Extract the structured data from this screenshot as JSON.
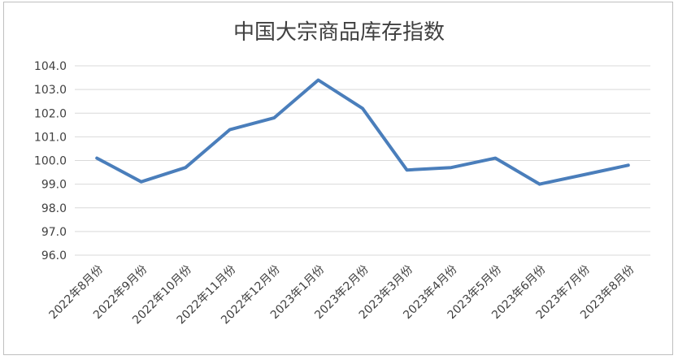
{
  "chart_data": {
    "type": "line",
    "title": "中国大宗商品库存指数",
    "xlabel": "",
    "ylabel": "",
    "ylim": [
      96.0,
      104.0
    ],
    "yticks": [
      "104.0",
      "103.0",
      "102.0",
      "101.0",
      "100.0",
      "99.0",
      "98.0",
      "97.0",
      "96.0"
    ],
    "grid": true,
    "legend": "none",
    "categories": [
      "2022年8月份",
      "2022年9月份",
      "2022年10月份",
      "2022年11月份",
      "2022年12月份",
      "2023年1月份",
      "2023年2月份",
      "2023年3月份",
      "2023年4月份",
      "2023年5月份",
      "2023年6月份",
      "2023年7月份",
      "2023年8月份"
    ],
    "series": [
      {
        "color": "#4a7ebb",
        "values": [
          100.1,
          99.1,
          99.7,
          101.3,
          101.8,
          103.4,
          102.2,
          99.6,
          99.7,
          100.1,
          99.0,
          99.4,
          99.8
        ]
      }
    ]
  }
}
